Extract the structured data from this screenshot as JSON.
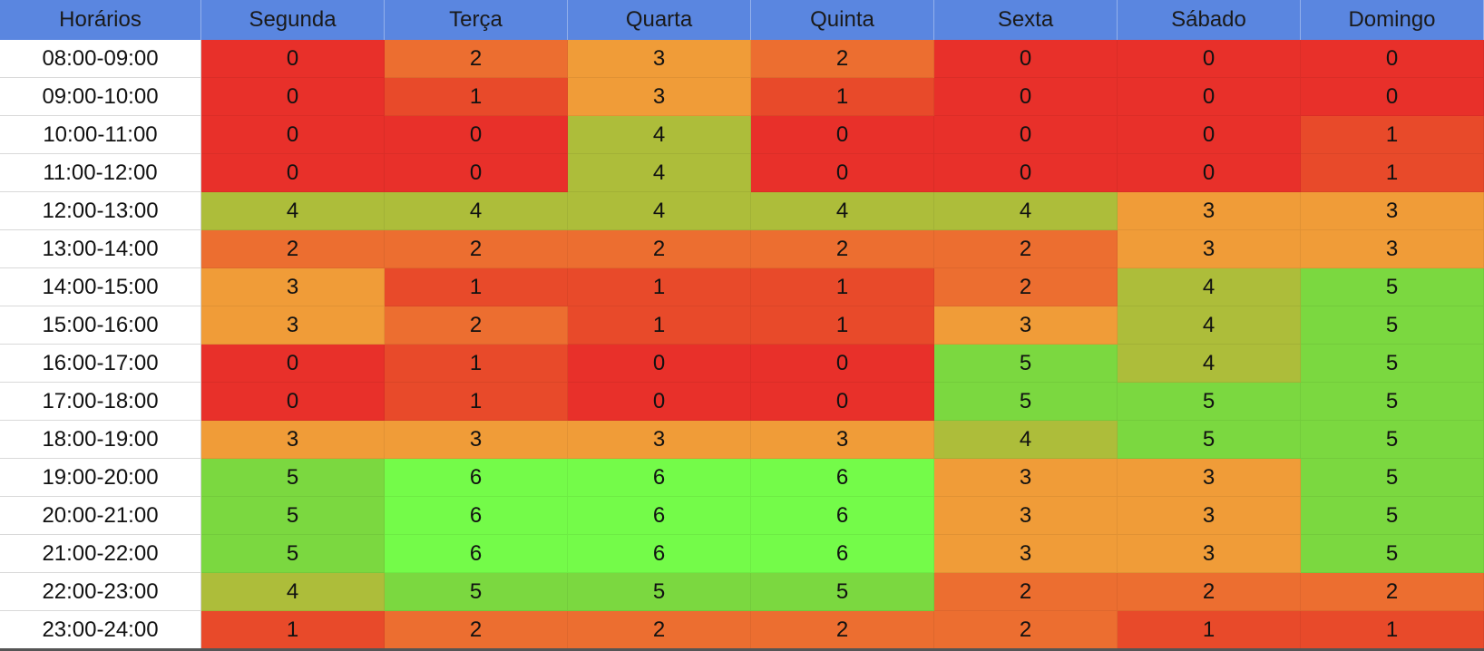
{
  "chart_data": {
    "type": "heatmap",
    "title": "",
    "corner_label": "Horários",
    "columns": [
      "Segunda",
      "Terça",
      "Quarta",
      "Quinta",
      "Sexta",
      "Sábado",
      "Domingo"
    ],
    "rows": [
      "08:00-09:00",
      "09:00-10:00",
      "10:00-11:00",
      "11:00-12:00",
      "12:00-13:00",
      "13:00-14:00",
      "14:00-15:00",
      "15:00-16:00",
      "16:00-17:00",
      "17:00-18:00",
      "18:00-19:00",
      "19:00-20:00",
      "20:00-21:00",
      "21:00-22:00",
      "22:00-23:00",
      "23:00-24:00"
    ],
    "values": [
      [
        0,
        2,
        3,
        2,
        0,
        0,
        0
      ],
      [
        0,
        1,
        3,
        1,
        0,
        0,
        0
      ],
      [
        0,
        0,
        4,
        0,
        0,
        0,
        1
      ],
      [
        0,
        0,
        4,
        0,
        0,
        0,
        1
      ],
      [
        4,
        4,
        4,
        4,
        4,
        3,
        3
      ],
      [
        2,
        2,
        2,
        2,
        2,
        3,
        3
      ],
      [
        3,
        1,
        1,
        1,
        2,
        4,
        5
      ],
      [
        3,
        2,
        1,
        1,
        3,
        4,
        5
      ],
      [
        0,
        1,
        0,
        0,
        5,
        4,
        5
      ],
      [
        0,
        1,
        0,
        0,
        5,
        5,
        5
      ],
      [
        3,
        3,
        3,
        3,
        4,
        5,
        5
      ],
      [
        5,
        6,
        6,
        6,
        3,
        3,
        5
      ],
      [
        5,
        6,
        6,
        6,
        3,
        3,
        5
      ],
      [
        5,
        6,
        6,
        6,
        3,
        3,
        5
      ],
      [
        4,
        5,
        5,
        5,
        2,
        2,
        2
      ],
      [
        1,
        2,
        2,
        2,
        2,
        1,
        1
      ]
    ],
    "color_scale": {
      "0": "#e8302a",
      "1": "#e84a2a",
      "2": "#ec6e30",
      "3": "#f09c38",
      "4": "#adbd3a",
      "5": "#7bd840",
      "6": "#74fb49"
    },
    "header_background": "#5a86e0",
    "grid": true,
    "legend": "none"
  }
}
